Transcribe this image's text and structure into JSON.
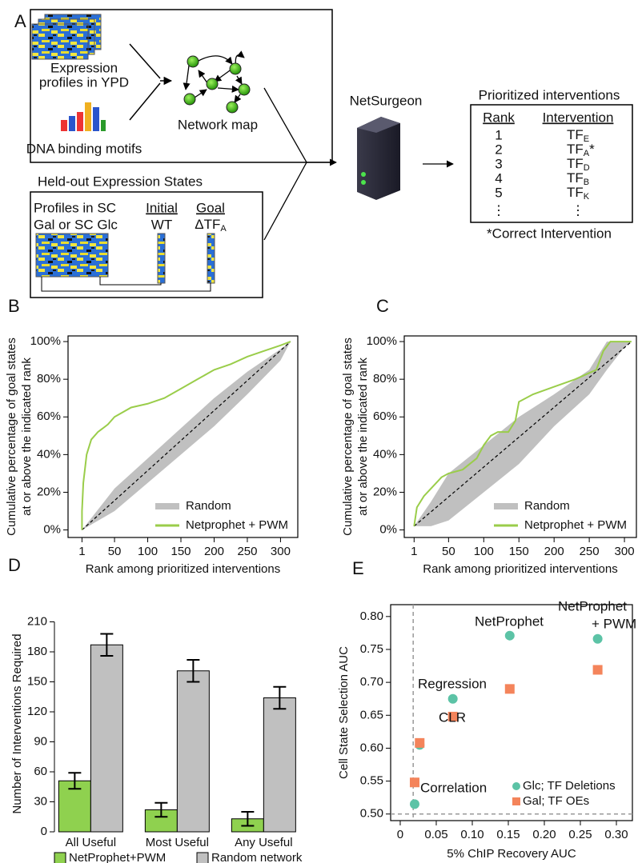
{
  "panel_labels": [
    "A",
    "B",
    "C",
    "D",
    "E"
  ],
  "diagram": {
    "training_box": {
      "expression": [
        "Expression",
        "profiles in YPD"
      ],
      "motifs": "DNA binding motifs",
      "network": "Network map"
    },
    "heldout_box": {
      "title": "Held-out Expression States",
      "profiles": [
        "Profiles in SC",
        "Gal or SC Glc"
      ],
      "initial": "Initial",
      "initial_state": "WT",
      "goal": "Goal",
      "goal_state": [
        "ΔTF",
        "A"
      ]
    },
    "tool": "NetSurgeon",
    "output": {
      "title": "Prioritized interventions",
      "headers": [
        "Rank",
        "Intervention"
      ],
      "rows": [
        [
          "1",
          [
            "TF",
            "E"
          ]
        ],
        [
          "2",
          [
            "TF",
            "A",
            "*"
          ]
        ],
        [
          "3",
          [
            "TF",
            "D"
          ]
        ],
        [
          "4",
          [
            "TF",
            "B"
          ]
        ],
        [
          "5",
          [
            "TF",
            "K"
          ]
        ],
        [
          "⋮",
          "⋮"
        ]
      ],
      "footnote": "*Correct Intervention"
    }
  },
  "chart_data": [
    {
      "type": "line",
      "xlabel": "Rank among prioritized interventions",
      "ylabel": [
        "Cumulative percentage of goal states",
        "at or above the indicated rank"
      ],
      "xlim": [
        -20,
        326
      ],
      "ylim": [
        -4,
        103
      ],
      "xticks": [
        1,
        50,
        100,
        150,
        200,
        250,
        300
      ],
      "yticks": [
        {
          "value": 0,
          "label": "0%"
        },
        {
          "value": 20,
          "label": "20%"
        },
        {
          "value": 40,
          "label": "40%"
        },
        {
          "value": 60,
          "label": "60%"
        },
        {
          "value": 80,
          "label": "80%"
        },
        {
          "value": 100,
          "label": "100%"
        }
      ],
      "legend": "lower right",
      "series": [
        {
          "name": "Random",
          "color": "#c0c0c0",
          "style": "band",
          "x": [
            1,
            50,
            100,
            150,
            200,
            250,
            300,
            315
          ],
          "lower": [
            0,
            10,
            25,
            40,
            55,
            72,
            90,
            100
          ],
          "upper": [
            0,
            22,
            38,
            54,
            70,
            84,
            96,
            100
          ]
        },
        {
          "name": "Netprophet + PWM",
          "color": "#9acd4a",
          "x": [
            1,
            1,
            3,
            8,
            15,
            25,
            40,
            50,
            75,
            100,
            125,
            150,
            175,
            200,
            225,
            250,
            275,
            300,
            315
          ],
          "values": [
            0,
            10,
            25,
            40,
            48,
            52,
            56,
            60,
            65,
            67,
            70,
            75,
            80,
            85,
            88,
            92,
            95,
            98,
            100
          ]
        }
      ]
    },
    {
      "type": "line",
      "xlabel": "Rank among prioritized interventions",
      "ylabel": [
        "Cumulative percentage of goal states",
        "at or above the indicated rank"
      ],
      "xlim": [
        -13,
        317
      ],
      "ylim": [
        -4,
        103
      ],
      "xticks": [
        1,
        50,
        100,
        150,
        200,
        250,
        300
      ],
      "yticks": [
        {
          "value": 0,
          "label": "0%"
        },
        {
          "value": 20,
          "label": "20%"
        },
        {
          "value": 40,
          "label": "40%"
        },
        {
          "value": 60,
          "label": "60%"
        },
        {
          "value": 80,
          "label": "80%"
        },
        {
          "value": 100,
          "label": "100%"
        }
      ],
      "legend": "lower right",
      "series": [
        {
          "name": "Random",
          "color": "#c0c0c0",
          "style": "band",
          "x": [
            1,
            25,
            50,
            100,
            150,
            200,
            250,
            275,
            300,
            310
          ],
          "lower": [
            2,
            2,
            5,
            20,
            35,
            55,
            72,
            85,
            97,
            100
          ],
          "upper": [
            2,
            15,
            30,
            45,
            60,
            72,
            85,
            100,
            100,
            100
          ]
        },
        {
          "name": "Netprophet + PWM",
          "color": "#9acd4a",
          "x": [
            1,
            5,
            15,
            25,
            40,
            50,
            70,
            90,
            100,
            110,
            120,
            135,
            145,
            150,
            170,
            200,
            230,
            260,
            270,
            280,
            310
          ],
          "values": [
            2,
            12,
            18,
            22,
            28,
            30,
            32,
            38,
            45,
            50,
            52,
            52,
            58,
            68,
            72,
            76,
            80,
            85,
            95,
            100,
            100
          ]
        }
      ]
    },
    {
      "type": "bar",
      "ylabel": "Number of Interventions Required",
      "categories": [
        "All Useful",
        "Most Useful",
        "Any Useful"
      ],
      "ylim": [
        0,
        216
      ],
      "yticks": [
        0,
        30,
        60,
        90,
        120,
        150,
        180,
        210
      ],
      "legend": "bottom",
      "series": [
        {
          "name": "NetProphet+PWM",
          "color": "#8fd14f",
          "values": [
            51,
            22,
            13
          ],
          "errors": [
            8,
            7,
            7
          ]
        },
        {
          "name": "Random network",
          "color": "#c0c0c0",
          "values": [
            187,
            161,
            134
          ],
          "errors": [
            11,
            11,
            11
          ]
        }
      ]
    },
    {
      "type": "scatter",
      "xlabel": "5% ChIP Recovery AUC",
      "ylabel": "Cell State Selection AUC",
      "xlim": [
        -0.0133,
        0.3222
      ],
      "ylim": [
        0.49,
        0.818
      ],
      "xticks": [
        0,
        0.05,
        {
          "value": 0.1,
          "label": "0.10"
        },
        0.15,
        {
          "value": 0.2,
          "label": "0.20"
        },
        0.25,
        {
          "value": 0.3,
          "label": "0.30"
        }
      ],
      "yticks": [
        {
          "value": 0.5,
          "label": "0.50"
        },
        0.55,
        {
          "value": 0.6,
          "label": "0.60"
        },
        0.65,
        {
          "value": 0.7,
          "label": "0.70"
        },
        0.75,
        {
          "value": 0.8,
          "label": "0.80"
        }
      ],
      "reference_x": 0.018,
      "reference_y": 0.5,
      "legend": "lower right",
      "annotations": [
        [
          "Correlation"
        ],
        [
          "CLR"
        ],
        [
          "Regression"
        ],
        [
          "NetProphet"
        ],
        [
          "NetProphet",
          "+ PWM"
        ]
      ],
      "series": [
        {
          "name": "Glc; TF Deletions",
          "color": "#5cc3a6",
          "marker": "circle",
          "x": [
            0.02,
            0.027,
            0.073,
            0.152,
            0.274
          ],
          "values": [
            0.515,
            0.605,
            0.675,
            0.771,
            0.766
          ]
        },
        {
          "name": "Gal; TF OEs",
          "color": "#f4845b",
          "marker": "square",
          "x": [
            0.02,
            0.027,
            0.073,
            0.152,
            0.274
          ],
          "values": [
            0.548,
            0.608,
            0.648,
            0.69,
            0.719
          ]
        }
      ]
    }
  ]
}
